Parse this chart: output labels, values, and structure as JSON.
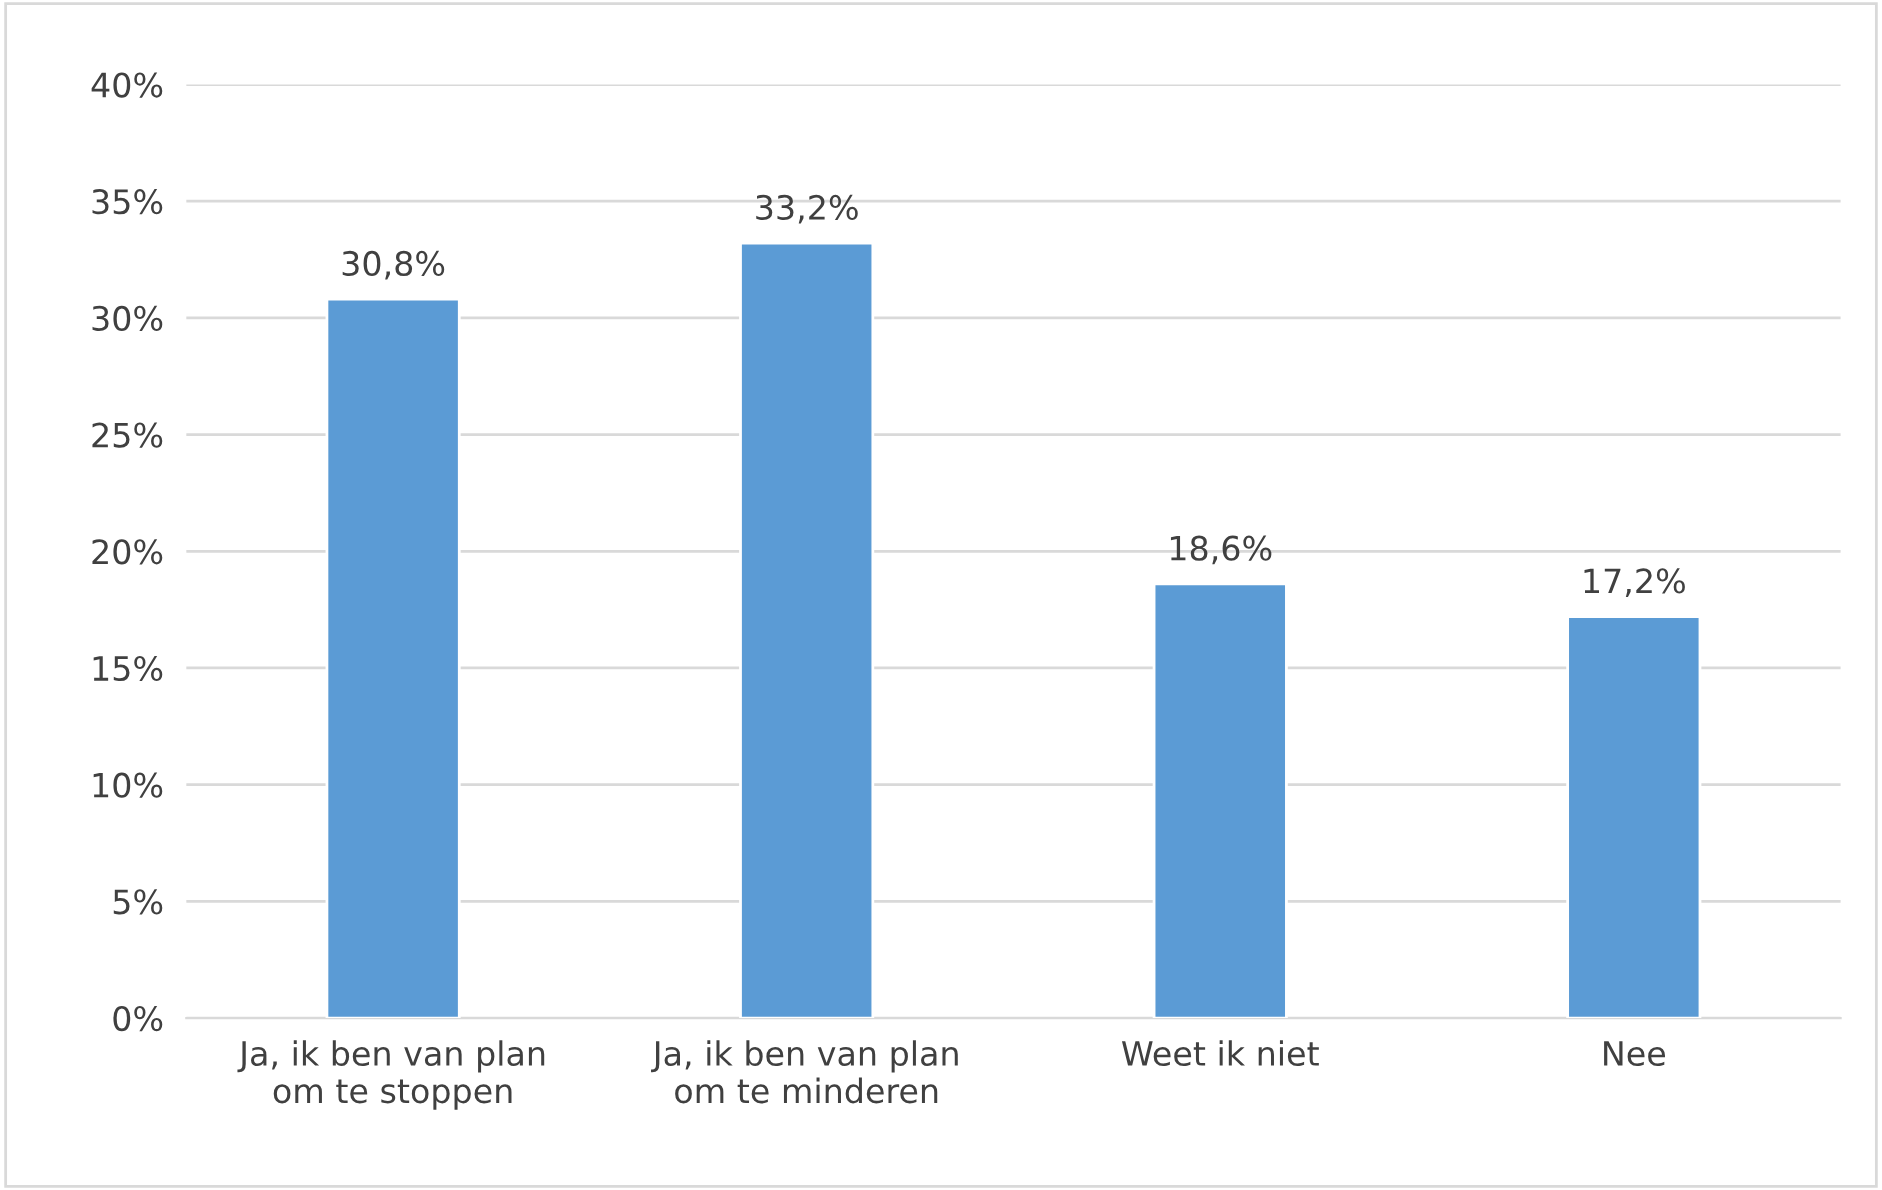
{
  "chart_data": {
    "type": "bar",
    "categories": [
      "Ja, ik ben van plan\nom te stoppen",
      "Ja, ik ben van plan\nom te minderen",
      "Weet ik niet",
      "Nee"
    ],
    "values": [
      30.8,
      33.2,
      18.6,
      17.2
    ],
    "value_labels": [
      "30,8%",
      "33,2%",
      "18,6%",
      "17,2%"
    ],
    "color": "#5b9bd5",
    "ylim": [
      0,
      40
    ],
    "yticks": [
      {
        "value": 0,
        "label": "0%"
      },
      {
        "value": 5,
        "label": "5%"
      },
      {
        "value": 10,
        "label": "10%"
      },
      {
        "value": 15,
        "label": "15%"
      },
      {
        "value": 20,
        "label": "20%"
      },
      {
        "value": 25,
        "label": "25%"
      },
      {
        "value": 30,
        "label": "30%"
      },
      {
        "value": 35,
        "label": "35%"
      },
      {
        "value": 40,
        "label": "40%"
      }
    ],
    "grid": "y",
    "legend": false
  }
}
